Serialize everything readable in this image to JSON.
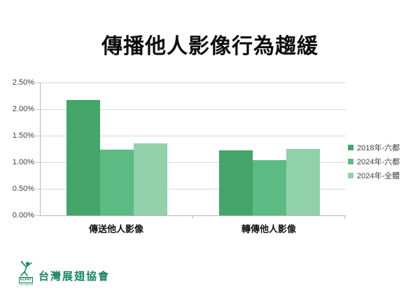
{
  "title": "傳播他人影像行為趨緩",
  "colors": {
    "series": [
      "#43a567",
      "#5cbb83",
      "#90d1aa"
    ],
    "gridline": "#d9d9d9",
    "axis_line": "#b7b7b7",
    "tick_label": "#404040",
    "title_color": "#0d0d0d",
    "logo_green": "#17875f"
  },
  "chart_data": {
    "type": "bar",
    "title": "傳播他人影像行為趨緩",
    "categories": [
      "傳送他人影像",
      "轉傳他人影像"
    ],
    "series": [
      {
        "name": "2018年-六都",
        "color": "#43a567",
        "values": [
          2.17,
          1.22
        ]
      },
      {
        "name": "2024年-六都",
        "color": "#5cbb83",
        "values": [
          1.24,
          1.04
        ]
      },
      {
        "name": "2024年-全體",
        "color": "#90d1aa",
        "values": [
          1.35,
          1.25
        ]
      }
    ],
    "xlabel": "",
    "ylabel": "",
    "ylim": [
      0,
      2.5
    ],
    "ytick_step": 0.5,
    "ytick_labels": [
      "0.00%",
      "0.50%",
      "1.00%",
      "1.50%",
      "2.00%",
      "2.50%"
    ],
    "grid": true,
    "legend_position": "right"
  },
  "footer": {
    "logo_text": "台灣展翅協會",
    "logo_ecpat": "ECPAT",
    "logo_taiwan": "TAIWAN"
  }
}
